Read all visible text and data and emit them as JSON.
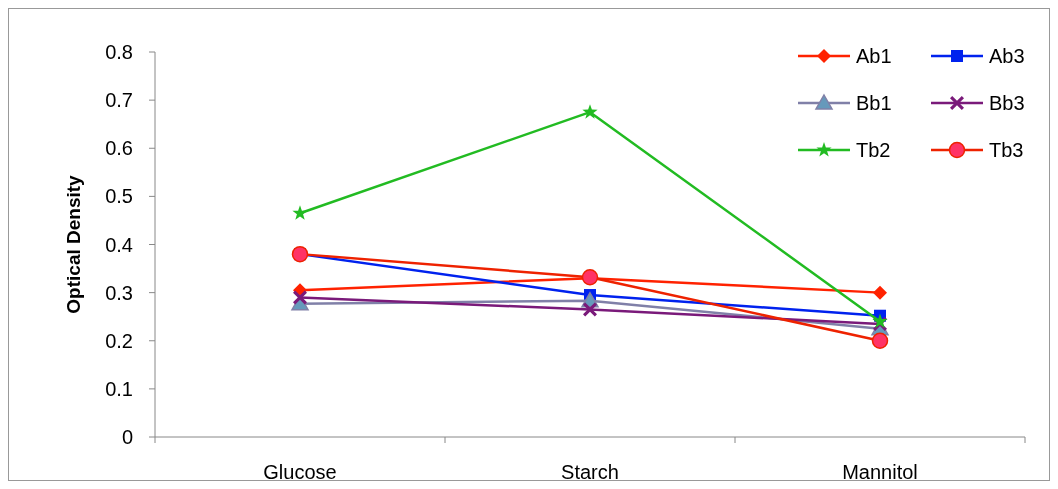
{
  "chart_data": {
    "type": "line",
    "ylabel": "Optical Density",
    "categories": [
      "Glucose",
      "Starch",
      "Mannitol"
    ],
    "ylim": [
      0,
      0.8
    ],
    "yticks": [
      {
        "value": 0,
        "label": "0"
      },
      0.1,
      0.2,
      0.3,
      0.4,
      0.5,
      0.6,
      0.7,
      0.8
    ],
    "grid": false,
    "legend": "top right",
    "series": [
      {
        "name": "Ab1",
        "color": "#ff2200",
        "marker": "diamond",
        "values": [
          0.305,
          0.33,
          0.3
        ]
      },
      {
        "name": "Ab3",
        "color": "#0022ee",
        "marker": "square",
        "values": [
          0.38,
          0.295,
          0.252
        ]
      },
      {
        "name": "Bb1",
        "color": "#8080a8",
        "marker": "triangle",
        "values": [
          0.277,
          0.283,
          0.225
        ]
      },
      {
        "name": "Bb3",
        "color": "#7a1a7a",
        "marker": "cross",
        "values": [
          0.29,
          0.265,
          0.235
        ]
      },
      {
        "name": "Tb2",
        "color": "#22bb22",
        "marker": "star",
        "values": [
          0.465,
          0.675,
          0.24
        ]
      },
      {
        "name": "Tb3",
        "color": "#ee2200",
        "marker": "circle",
        "values": [
          0.38,
          0.332,
          0.2
        ]
      }
    ]
  }
}
